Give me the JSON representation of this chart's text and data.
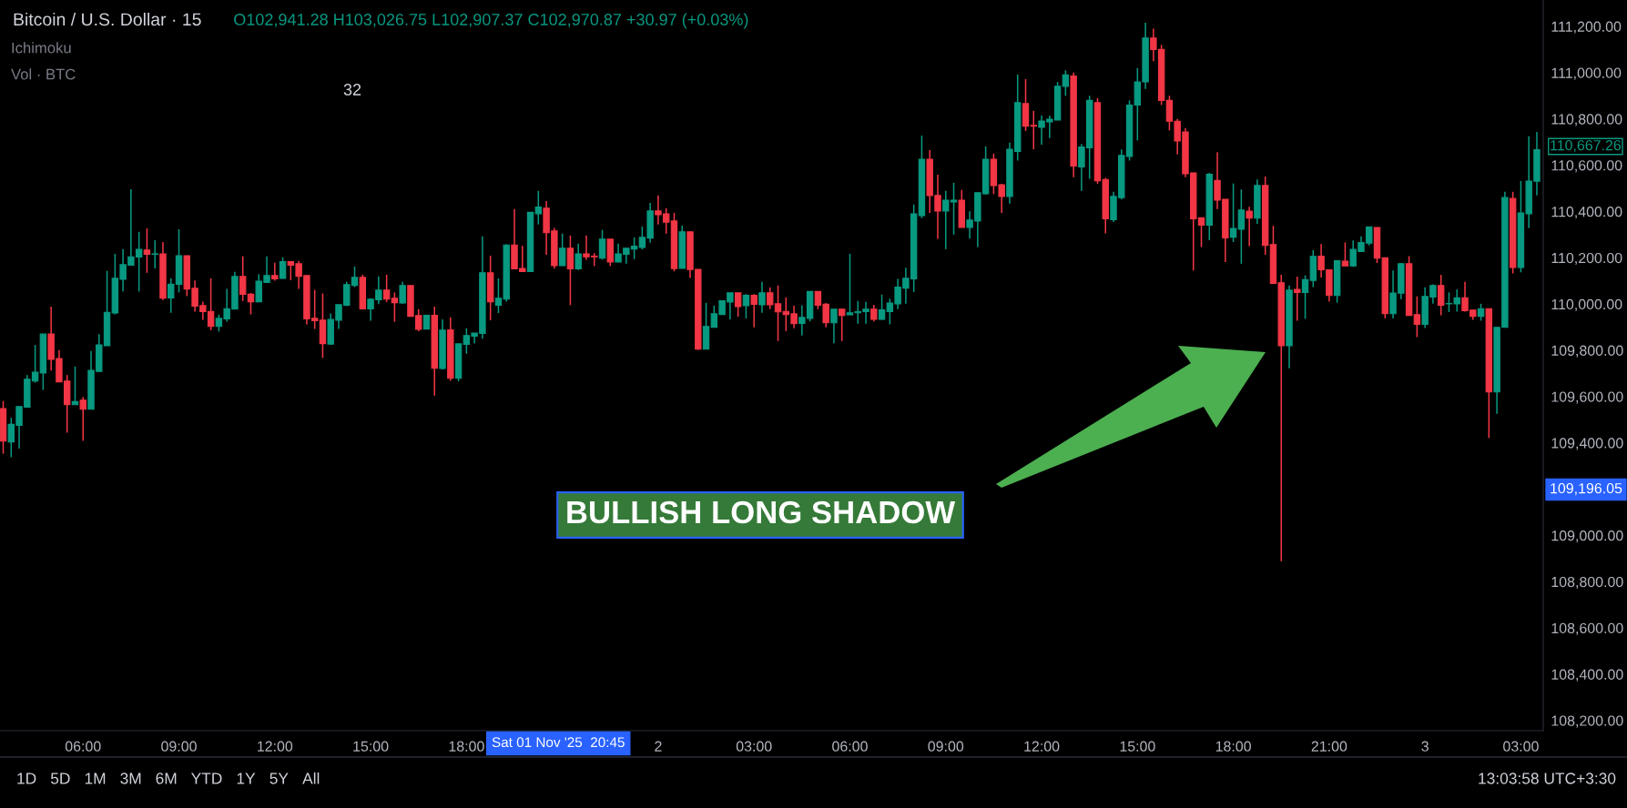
{
  "chart_data": {
    "type": "candlestick",
    "colors": [
      "#f23645",
      "#089981",
      "#089981",
      "#089981",
      "#089981",
      "#089981",
      "#f23645",
      "#f23645",
      "#f23645",
      "#089981",
      "#f23645",
      "#089981",
      "#089981",
      "#089981",
      "#089981",
      "#089981",
      "#089981",
      "#089981",
      "#f23645",
      "#089981",
      "#f23645",
      "#089981",
      "#089981",
      "#f23645",
      "#f23645",
      "#f23645",
      "#f23645",
      "#089981",
      "#089981",
      "#089981",
      "#f23645",
      "#f23645",
      "#089981",
      "#089981",
      "#f23645",
      "#089981",
      "#f23645",
      "#f23645",
      "#f23645",
      "#f23645",
      "#f23645",
      "#089981",
      "#089981",
      "#089981",
      "#089981",
      "#f23645",
      "#089981",
      "#089981",
      "#f23645",
      "#f23645",
      "#089981",
      "#f23645",
      "#f23645",
      "#089981",
      "#f23645",
      "#089981",
      "#f23645",
      "#089981",
      "#089981",
      "#089981",
      "#089981",
      "#f23645",
      "#089981",
      "#089981",
      "#f23645",
      "#f23645",
      "#089981",
      "#089981",
      "#f23645",
      "#f23645",
      "#089981",
      "#f23645",
      "#089981",
      "#f23645",
      "#f23645",
      "#089981",
      "#f23645",
      "#089981",
      "#089981",
      "#089981",
      "#089981",
      "#089981",
      "#f23645",
      "#f23645",
      "#f23645",
      "#089981",
      "#f23645",
      "#f23645",
      "#089981",
      "#089981",
      "#089981",
      "#089981",
      "#f23645",
      "#089981",
      "#f23645",
      "#089981",
      "#f23645",
      "#f23645",
      "#f23645",
      "#f23645",
      "#089981",
      "#089981",
      "#f23645",
      "#f23645",
      "#089981",
      "#f23645",
      "#089981",
      "#089981",
      "#089981",
      "#f23645",
      "#089981",
      "#089981",
      "#089981",
      "#089981",
      "#089981",
      "#089981",
      "#f23645",
      "#f23645",
      "#089981",
      "#089981",
      "#f23645",
      "#089981",
      "#089981",
      "#089981",
      "#f23645",
      "#f23645",
      "#089981",
      "#089981",
      "#f23645",
      "#f23645",
      "#089981",
      "#089981",
      "#089981",
      "#089981",
      "#f23645",
      "#089981",
      "#089981",
      "#f23645",
      "#f23645",
      "#089981",
      "#089981",
      "#089981",
      "#089981",
      "#089981",
      "#f23645",
      "#f23645",
      "#f23645",
      "#f23645",
      "#f23645",
      "#f23645",
      "#f23645",
      "#089981",
      "#f23645",
      "#f23645",
      "#089981",
      "#089981",
      "#f23645",
      "#089981",
      "#f23645",
      "#f23645",
      "#f23645",
      "#089981",
      "#f23645",
      "#089981",
      "#089981",
      "#f23645",
      "#f23645",
      "#089981",
      "#f23645",
      "#089981",
      "#089981",
      "#089981",
      "#f23645",
      "#f23645",
      "#089981",
      "#089981",
      "#f23645",
      "#f23645",
      "#089981",
      "#089981",
      "#f23645",
      "#089981",
      "#089981",
      "#f23645",
      "#f23645",
      "#089981",
      "#f23645",
      "#089981",
      "#089981",
      "#f23645",
      "#089981",
      "#089981",
      "#089981"
    ],
    "annotations": [
      "Bitcoin / U.S. Dollar · 15",
      "O102,941.28 H103,026.75 L102,907.37 C102,970.87 +30.97 (+0.03%)",
      "Ichimoku",
      "Vol · BTC",
      "32",
      "BULLISH LONG SHADOW",
      "110,667.26",
      "109,196.05",
      "Sat 01 Nov '25  20:45",
      "1D",
      "5D",
      "1M",
      "3M",
      "6M",
      "YTD",
      "1Y",
      "5Y",
      "All",
      "13:03:58 UTC+3:30"
    ],
    "xlim": [
      "2025-11-01T03:24",
      "2025-11-03T03:42"
    ],
    "ylim": [
      108156,
      111314
    ],
    "xticks": [
      {
        "value": "2025-11-01T06:00",
        "label": "06:00"
      },
      {
        "value": "2025-11-01T09:00",
        "label": "09:00"
      },
      {
        "value": "2025-11-01T12:00",
        "label": "12:00"
      },
      {
        "value": "2025-11-01T15:00",
        "label": "15:00"
      },
      {
        "value": "2025-11-01T18:00",
        "label": "18:00"
      },
      {
        "value": "2025-11-02",
        "label": "2"
      },
      {
        "value": "2025-11-02T03:00",
        "label": "03:00"
      },
      {
        "value": "2025-11-02T06:00",
        "label": "06:00"
      },
      {
        "value": "2025-11-02T09:00",
        "label": "09:00"
      },
      {
        "value": "2025-11-02T12:00",
        "label": "12:00"
      },
      {
        "value": "2025-11-02T15:00",
        "label": "15:00"
      },
      {
        "value": "2025-11-02T18:00",
        "label": "18:00"
      },
      {
        "value": "2025-11-02T21:00",
        "label": "21:00"
      },
      {
        "value": "2025-11-03",
        "label": "3"
      },
      {
        "value": "2025-11-03T03:00",
        "label": "03:00"
      }
    ],
    "yticks": [
      {
        "value": 108200,
        "label": "108,200.00"
      },
      {
        "value": 108400,
        "label": "108,400.00"
      },
      {
        "value": 108600,
        "label": "108,600.00"
      },
      {
        "value": 108800,
        "label": "108,800.00"
      },
      {
        "value": 109000,
        "label": "109,000.00"
      },
      {
        "value": 109400,
        "label": "109,400.00"
      },
      {
        "value": 109600,
        "label": "109,600.00"
      },
      {
        "value": 109800,
        "label": "109,800.00"
      },
      {
        "value": 110000,
        "label": "110,000.00"
      },
      {
        "value": 110200,
        "label": "110,200.00"
      },
      {
        "value": 110400,
        "label": "110,400.00"
      },
      {
        "value": 110600,
        "label": "110,600.00"
      },
      {
        "value": 110800,
        "label": "110,800.00"
      },
      {
        "value": 111000,
        "label": "111,000.00"
      },
      {
        "value": 111200,
        "label": "111,200.00"
      }
    ],
    "x": [
      "2025-11-01T03:30",
      "2025-11-01T03:45",
      "2025-11-01T04:00",
      "2025-11-01T04:15",
      "2025-11-01T04:30",
      "2025-11-01T04:45",
      "2025-11-01T05:00",
      "2025-11-01T05:15",
      "2025-11-01T05:30",
      "2025-11-01T05:45",
      "2025-11-01T06:00",
      "2025-11-01T06:15",
      "2025-11-01T06:30",
      "2025-11-01T06:45",
      "2025-11-01T07:00",
      "2025-11-01T07:15",
      "2025-11-01T07:30",
      "2025-11-01T07:45",
      "2025-11-01T08:00",
      "2025-11-01T08:15",
      "2025-11-01T08:30",
      "2025-11-01T08:45",
      "2025-11-01T09:00",
      "2025-11-01T09:15",
      "2025-11-01T09:30",
      "2025-11-01T09:45",
      "2025-11-01T10:00",
      "2025-11-01T10:15",
      "2025-11-01T10:30",
      "2025-11-01T10:45",
      "2025-11-01T11:00",
      "2025-11-01T11:15",
      "2025-11-01T11:30",
      "2025-11-01T11:45",
      "2025-11-01T12:00",
      "2025-11-01T12:15",
      "2025-11-01T12:30",
      "2025-11-01T12:45",
      "2025-11-01T13:00",
      "2025-11-01T13:15",
      "2025-11-01T13:30",
      "2025-11-01T13:45",
      "2025-11-01T14:00",
      "2025-11-01T14:15",
      "2025-11-01T14:30",
      "2025-11-01T14:45",
      "2025-11-01T15:00",
      "2025-11-01T15:15",
      "2025-11-01T15:30",
      "2025-11-01T15:45",
      "2025-11-01T16:00",
      "2025-11-01T16:15",
      "2025-11-01T16:30",
      "2025-11-01T16:45",
      "2025-11-01T17:00",
      "2025-11-01T17:15",
      "2025-11-01T17:30",
      "2025-11-01T17:45",
      "2025-11-01T18:00",
      "2025-11-01T18:15",
      "2025-11-01T18:30",
      "2025-11-01T18:45",
      "2025-11-01T19:00",
      "2025-11-01T19:15",
      "2025-11-01T19:30",
      "2025-11-01T19:45",
      "2025-11-01T20:00",
      "2025-11-01T20:15",
      "2025-11-01T20:30",
      "2025-11-01T20:45",
      "2025-11-01T21:00",
      "2025-11-01T21:15",
      "2025-11-01T21:30",
      "2025-11-01T21:45",
      "2025-11-01T22:00",
      "2025-11-01T22:15",
      "2025-11-01T22:30",
      "2025-11-01T22:45",
      "2025-11-01T23:00",
      "2025-11-01T23:15",
      "2025-11-01T23:30",
      "2025-11-01T23:45",
      "2025-11-02T00:00",
      "2025-11-02T00:15",
      "2025-11-02T00:30",
      "2025-11-02T00:45",
      "2025-11-02T01:00",
      "2025-11-02T01:15",
      "2025-11-02T01:30",
      "2025-11-02T01:45",
      "2025-11-02T02:00",
      "2025-11-02T02:15",
      "2025-11-02T02:30",
      "2025-11-02T02:45",
      "2025-11-02T03:00",
      "2025-11-02T03:15",
      "2025-11-02T03:30",
      "2025-11-02T03:45",
      "2025-11-02T04:00",
      "2025-11-02T04:15",
      "2025-11-02T04:30",
      "2025-11-02T04:45",
      "2025-11-02T05:00",
      "2025-11-02T05:15",
      "2025-11-02T05:30",
      "2025-11-02T05:45",
      "2025-11-02T06:00",
      "2025-11-02T06:15",
      "2025-11-02T06:30",
      "2025-11-02T06:45",
      "2025-11-02T07:00",
      "2025-11-02T07:15",
      "2025-11-02T07:30",
      "2025-11-02T07:45",
      "2025-11-02T08:00",
      "2025-11-02T08:15",
      "2025-11-02T08:30",
      "2025-11-02T08:45",
      "2025-11-02T09:00",
      "2025-11-02T09:15",
      "2025-11-02T09:30",
      "2025-11-02T09:45",
      "2025-11-02T10:00",
      "2025-11-02T10:15",
      "2025-11-02T10:30",
      "2025-11-02T10:45",
      "2025-11-02T11:00",
      "2025-11-02T11:15",
      "2025-11-02T11:30",
      "2025-11-02T11:45",
      "2025-11-02T12:00",
      "2025-11-02T12:15",
      "2025-11-02T12:30",
      "2025-11-02T12:45",
      "2025-11-02T13:00",
      "2025-11-02T13:15",
      "2025-11-02T13:30",
      "2025-11-02T13:45",
      "2025-11-02T14:00",
      "2025-11-02T14:15",
      "2025-11-02T14:30",
      "2025-11-02T14:45",
      "2025-11-02T15:00",
      "2025-11-02T15:15",
      "2025-11-02T15:30",
      "2025-11-02T15:45",
      "2025-11-02T16:00",
      "2025-11-02T16:15",
      "2025-11-02T16:30",
      "2025-11-02T16:45",
      "2025-11-02T17:00",
      "2025-11-02T17:15",
      "2025-11-02T17:30",
      "2025-11-02T17:45",
      "2025-11-02T18:00",
      "2025-11-02T18:15",
      "2025-11-02T18:30",
      "2025-11-02T18:45",
      "2025-11-02T19:00",
      "2025-11-02T19:15",
      "2025-11-02T19:30",
      "2025-11-02T19:45",
      "2025-11-02T20:00",
      "2025-11-02T20:15",
      "2025-11-02T20:30",
      "2025-11-02T20:45",
      "2025-11-02T21:00",
      "2025-11-02T21:15",
      "2025-11-02T21:30",
      "2025-11-02T21:45",
      "2025-11-02T22:00",
      "2025-11-02T22:15",
      "2025-11-02T22:30",
      "2025-11-02T22:45",
      "2025-11-02T23:00",
      "2025-11-02T23:15",
      "2025-11-02T23:30",
      "2025-11-02T23:45",
      "2025-11-03T00:00",
      "2025-11-03T00:15",
      "2025-11-03T00:30",
      "2025-11-03T00:45",
      "2025-11-03T01:00",
      "2025-11-03T01:15",
      "2025-11-03T01:30",
      "2025-11-03T01:45",
      "2025-11-03T02:00",
      "2025-11-03T02:15",
      "2025-11-03T02:30",
      "2025-11-03T02:45",
      "2025-11-03T03:00",
      "2025-11-03T03:15",
      "2025-11-03T03:30"
    ],
    "ohlc": [
      [
        109548,
        109581,
        109353,
        109408
      ],
      [
        109404,
        109508,
        109338,
        109480
      ],
      [
        109476,
        109557,
        109375,
        109557
      ],
      [
        109554,
        109693,
        109554,
        109675
      ],
      [
        109667,
        109823,
        109660,
        109705
      ],
      [
        109702,
        109870,
        109629,
        109870
      ],
      [
        109870,
        109989,
        109712,
        109761
      ],
      [
        109764,
        109801,
        109663,
        109663
      ],
      [
        109667,
        109693,
        109444,
        109565
      ],
      [
        109565,
        109730,
        109565,
        109578
      ],
      [
        109584,
        109598,
        109409,
        109545
      ],
      [
        109545,
        109797,
        109545,
        109713
      ],
      [
        109709,
        109870,
        109706,
        109823
      ],
      [
        109820,
        110143,
        109820,
        109964
      ],
      [
        109961,
        110217,
        109955,
        110111
      ],
      [
        110107,
        110237,
        110055,
        110170
      ],
      [
        110168,
        110496,
        110168,
        110204
      ],
      [
        110203,
        110312,
        110054,
        110236
      ],
      [
        110233,
        110327,
        110135,
        110215
      ],
      [
        110215,
        110276,
        110154,
        110217
      ],
      [
        110217,
        110268,
        110017,
        110025
      ],
      [
        110026,
        110111,
        109962,
        110086
      ],
      [
        110085,
        110323,
        110050,
        110209
      ],
      [
        110209,
        110209,
        110034,
        110065
      ],
      [
        110068,
        110102,
        109967,
        109991
      ],
      [
        109993,
        110010,
        109932,
        109967
      ],
      [
        109968,
        110111,
        109886,
        109903
      ],
      [
        109903,
        109954,
        109881,
        109938
      ],
      [
        109936,
        110065,
        109924,
        109980
      ],
      [
        109978,
        110139,
        109978,
        110119
      ],
      [
        110119,
        110206,
        110013,
        110042
      ],
      [
        110043,
        110048,
        109955,
        110010
      ],
      [
        110010,
        110129,
        110010,
        110099
      ],
      [
        110093,
        110206,
        110093,
        110123
      ],
      [
        110123,
        110178,
        110101,
        110109
      ],
      [
        110111,
        110202,
        110109,
        110183
      ],
      [
        110183,
        110186,
        110103,
        110168
      ],
      [
        110174,
        110186,
        110065,
        110120
      ],
      [
        110123,
        110123,
        109912,
        109936
      ],
      [
        109938,
        110061,
        109892,
        109928
      ],
      [
        109930,
        110046,
        109767,
        109829
      ],
      [
        109827,
        109959,
        109823,
        109933
      ],
      [
        109930,
        109997,
        109892,
        109997
      ],
      [
        109995,
        110096,
        109991,
        110084
      ],
      [
        110080,
        110162,
        110073,
        110115
      ],
      [
        110115,
        110127,
        109979,
        109979
      ],
      [
        109979,
        110025,
        109928,
        110021
      ],
      [
        110018,
        110119,
        109999,
        110060
      ],
      [
        110060,
        110127,
        110009,
        110021
      ],
      [
        110025,
        110050,
        109923,
        110006
      ],
      [
        110005,
        110096,
        110000,
        110080
      ],
      [
        110080,
        110080,
        109947,
        109947
      ],
      [
        109950,
        109978,
        109882,
        109891
      ],
      [
        109892,
        109954,
        109892,
        109951
      ],
      [
        109951,
        109989,
        109604,
        109722
      ],
      [
        109721,
        109934,
        109716,
        109887
      ],
      [
        109888,
        109942,
        109668,
        109679
      ],
      [
        109679,
        109828,
        109666,
        109828
      ],
      [
        109826,
        109895,
        109785,
        109864
      ],
      [
        109861,
        109874,
        109829,
        109874
      ],
      [
        109873,
        110292,
        109850,
        110135
      ],
      [
        110135,
        110209,
        109930,
        110010
      ],
      [
        109995,
        110111,
        109961,
        110025
      ],
      [
        110021,
        110258,
        110010,
        110255
      ],
      [
        110255,
        110410,
        110152,
        110152
      ],
      [
        110154,
        110251,
        110140,
        110140
      ],
      [
        110140,
        110396,
        110140,
        110396
      ],
      [
        110390,
        110489,
        110344,
        110419
      ],
      [
        110414,
        110445,
        110213,
        110308
      ],
      [
        110316,
        110329,
        110153,
        110166
      ],
      [
        110166,
        110304,
        110166,
        110241
      ],
      [
        110241,
        110296,
        109995,
        110152
      ],
      [
        110152,
        110261,
        110147,
        110217
      ],
      [
        110217,
        110296,
        110191,
        110204
      ],
      [
        110207,
        110220,
        110164,
        110204
      ],
      [
        110198,
        110320,
        110192,
        110280
      ],
      [
        110280,
        110280,
        110164,
        110182
      ],
      [
        110182,
        110261,
        110181,
        110217
      ],
      [
        110215,
        110241,
        110174,
        110241
      ],
      [
        110238,
        110288,
        110194,
        110250
      ],
      [
        110245,
        110335,
        110236,
        110288
      ],
      [
        110285,
        110437,
        110265,
        110402
      ],
      [
        110402,
        110469,
        110344,
        110386
      ],
      [
        110390,
        110414,
        110304,
        110354
      ],
      [
        110359,
        110394,
        110141,
        110153
      ],
      [
        110154,
        110339,
        110154,
        110312
      ],
      [
        110312,
        110312,
        110113,
        110149
      ],
      [
        110150,
        110150,
        109802,
        109805
      ],
      [
        109805,
        110005,
        109805,
        109903
      ],
      [
        109899,
        109993,
        109899,
        109958
      ],
      [
        109954,
        110014,
        109954,
        110014
      ],
      [
        110009,
        110048,
        109934,
        110048
      ],
      [
        110048,
        110048,
        109945,
        109989
      ],
      [
        109993,
        110043,
        109938,
        110038
      ],
      [
        110038,
        110043,
        109899,
        109999
      ],
      [
        109997,
        110096,
        109962,
        110048
      ],
      [
        110048,
        110072,
        109978,
        109997
      ],
      [
        110001,
        110080,
        109840,
        109966
      ],
      [
        109968,
        110029,
        109883,
        109954
      ],
      [
        109958,
        109993,
        109895,
        109915
      ],
      [
        109916,
        109995,
        109864,
        109942
      ],
      [
        109938,
        110054,
        109925,
        110054
      ],
      [
        110054,
        110054,
        109978,
        109995
      ],
      [
        109999,
        110004,
        109899,
        109919
      ],
      [
        109919,
        109978,
        109830,
        109978
      ],
      [
        109978,
        109978,
        109840,
        109951
      ],
      [
        109953,
        110217,
        109953,
        109962
      ],
      [
        109962,
        110013,
        109915,
        109967
      ],
      [
        109967,
        110009,
        109915,
        109978
      ],
      [
        109978,
        109997,
        109925,
        109934
      ],
      [
        109934,
        110041,
        109932,
        109975
      ],
      [
        109967,
        110023,
        109912,
        110004
      ],
      [
        110001,
        110109,
        109978,
        110073
      ],
      [
        110069,
        110157,
        110001,
        110111
      ],
      [
        110109,
        110430,
        110052,
        110390
      ],
      [
        110382,
        110728,
        110371,
        110626
      ],
      [
        110626,
        110665,
        110394,
        110469
      ],
      [
        110469,
        110559,
        110282,
        110402
      ],
      [
        110402,
        110489,
        110237,
        110449
      ],
      [
        110441,
        110524,
        110300,
        110449
      ],
      [
        110449,
        110493,
        110331,
        110331
      ],
      [
        110331,
        110401,
        110283,
        110363
      ],
      [
        110359,
        110481,
        110246,
        110481
      ],
      [
        110477,
        110681,
        110473,
        110626
      ],
      [
        110626,
        110650,
        110475,
        110512
      ],
      [
        110515,
        110520,
        110394,
        110465
      ],
      [
        110465,
        110698,
        110434,
        110669
      ],
      [
        110659,
        110992,
        110620,
        110870
      ],
      [
        110866,
        110972,
        110748,
        110769
      ],
      [
        110772,
        110835,
        110669,
        110769
      ],
      [
        110764,
        110815,
        110689,
        110791
      ],
      [
        110787,
        110815,
        110717,
        110799
      ],
      [
        110795,
        110960,
        110795,
        110941
      ],
      [
        110941,
        111010,
        110900,
        110990
      ],
      [
        110985,
        111000,
        110548,
        110596
      ],
      [
        110593,
        110692,
        110489,
        110679
      ],
      [
        110675,
        110900,
        110541,
        110880
      ],
      [
        110870,
        110890,
        110520,
        110533
      ],
      [
        110538,
        110545,
        110305,
        110368
      ],
      [
        110364,
        110485,
        110354,
        110465
      ],
      [
        110460,
        110668,
        110452,
        110642
      ],
      [
        110638,
        110880,
        110620,
        110860
      ],
      [
        110860,
        111020,
        110707,
        110960
      ],
      [
        110960,
        111216,
        110930,
        111150
      ],
      [
        111150,
        111190,
        111050,
        111100
      ],
      [
        111100,
        111120,
        110860,
        110880
      ],
      [
        110880,
        110900,
        110750,
        110790
      ],
      [
        110790,
        110800,
        110646,
        110705
      ],
      [
        110744,
        110760,
        110548,
        110563
      ],
      [
        110567,
        110567,
        110145,
        110368
      ],
      [
        110373,
        110373,
        110246,
        110341
      ],
      [
        110341,
        110567,
        110276,
        110561
      ],
      [
        110534,
        110656,
        110410,
        110449
      ],
      [
        110453,
        110453,
        110181,
        110286
      ],
      [
        110289,
        110521,
        110268,
        110327
      ],
      [
        110323,
        110495,
        110174,
        110406
      ],
      [
        110401,
        110420,
        110250,
        110371
      ],
      [
        110371,
        110538,
        110347,
        110512
      ],
      [
        110512,
        110551,
        110213,
        110253
      ],
      [
        110257,
        110338,
        110086,
        110089
      ],
      [
        110092,
        110126,
        108888,
        109820
      ],
      [
        109820,
        110080,
        109722,
        110060
      ],
      [
        110063,
        110118,
        109928,
        110050
      ],
      [
        110050,
        110124,
        109936,
        110105
      ],
      [
        110102,
        110233,
        110073,
        110206
      ],
      [
        110207,
        110259,
        110115,
        110148
      ],
      [
        110148,
        110148,
        110010,
        110037
      ],
      [
        110037,
        110190,
        110006,
        110187
      ],
      [
        110185,
        110266,
        110165,
        110165
      ],
      [
        110165,
        110275,
        110161,
        110236
      ],
      [
        110227,
        110292,
        110227,
        110266
      ],
      [
        110263,
        110334,
        110253,
        110334
      ],
      [
        110331,
        110331,
        110177,
        110198
      ],
      [
        110200,
        110200,
        109938,
        109958
      ],
      [
        109958,
        110145,
        109938,
        110047
      ],
      [
        110047,
        110177,
        110021,
        110174
      ],
      [
        110174,
        110207,
        109951,
        109951
      ],
      [
        109954,
        110033,
        109857,
        109912
      ],
      [
        109912,
        110072,
        109896,
        110033
      ],
      [
        110030,
        110085,
        110001,
        110080
      ],
      [
        110080,
        110126,
        109951,
        109995
      ],
      [
        110001,
        110050,
        109965,
        110002
      ],
      [
        110001,
        110063,
        109967,
        110027
      ],
      [
        110027,
        110096,
        109967,
        109971
      ],
      [
        109974,
        109974,
        109932,
        109947
      ],
      [
        109947,
        110001,
        109928,
        109980
      ],
      [
        109980,
        109980,
        109421,
        109620
      ],
      [
        109620,
        109899,
        109526,
        109899
      ],
      [
        109899,
        110485,
        109899,
        110460
      ],
      [
        110456,
        110485,
        110132,
        110158
      ],
      [
        110158,
        110532,
        110137,
        110394
      ],
      [
        110390,
        110725,
        110329,
        110531
      ],
      [
        110531,
        110744,
        110469,
        110667.26
      ]
    ]
  }
}
